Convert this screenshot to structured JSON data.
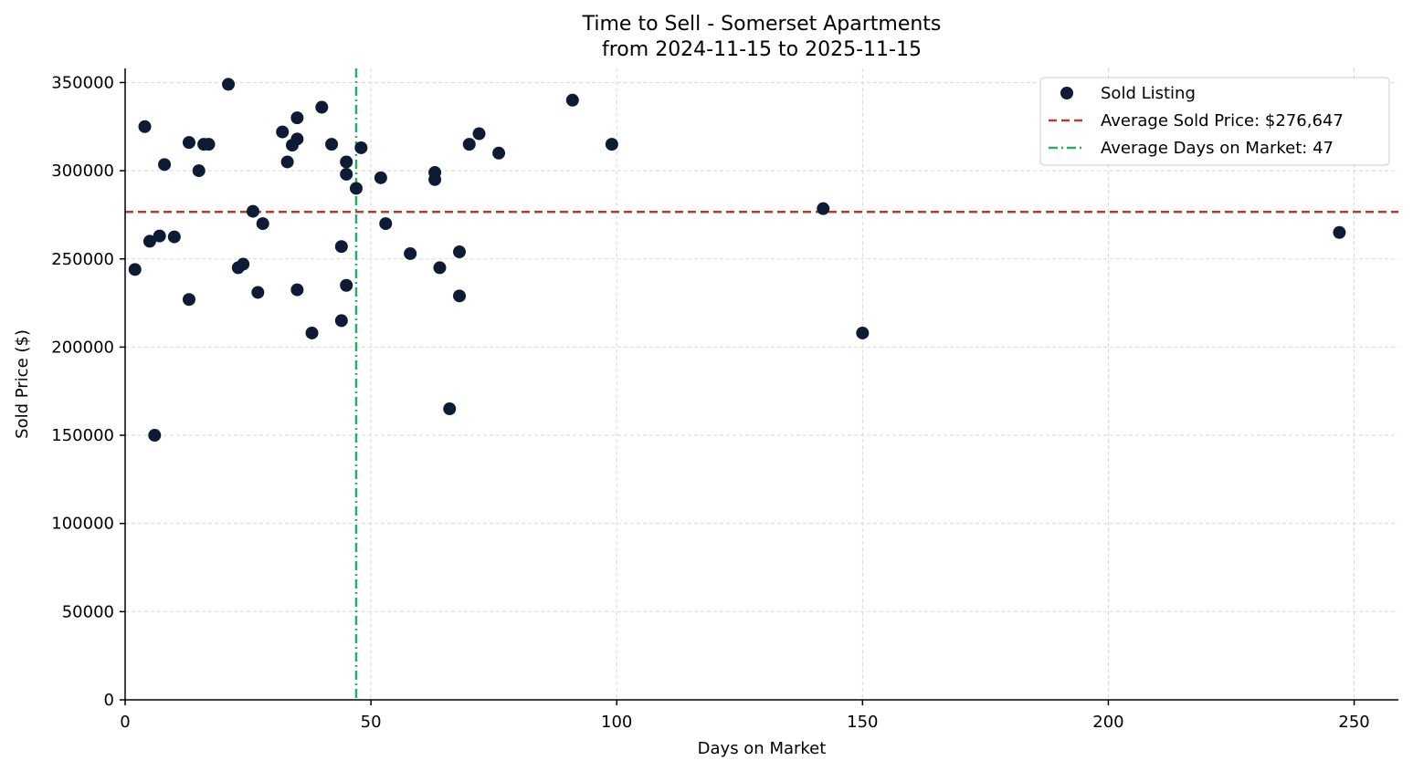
{
  "chart_data": {
    "type": "scatter",
    "title_line1": "Time to Sell - Somerset Apartments",
    "title_line2": "from 2024-11-15 to 2025-11-15",
    "xlabel": "Days on Market",
    "ylabel": "Sold Price ($)",
    "xlim": [
      0,
      259
    ],
    "ylim": [
      0,
      358000
    ],
    "xticks": [
      0,
      50,
      100,
      150,
      200,
      250
    ],
    "yticks": [
      0,
      50000,
      100000,
      150000,
      200000,
      250000,
      300000,
      350000
    ],
    "grid": true,
    "legend_position": "top-right",
    "colors": {
      "points": "#0d1b35",
      "avg_price_line": "#c0392b",
      "avg_days_line": "#27ae60"
    },
    "series": [
      {
        "name": "Sold Listing",
        "points": [
          [
            2,
            244000
          ],
          [
            4,
            325000
          ],
          [
            5,
            260000
          ],
          [
            6,
            150000
          ],
          [
            7,
            263000
          ],
          [
            8,
            303500
          ],
          [
            10,
            262500
          ],
          [
            13,
            316000
          ],
          [
            13,
            227000
          ],
          [
            15,
            300000
          ],
          [
            16,
            315000
          ],
          [
            17,
            315000
          ],
          [
            21,
            349000
          ],
          [
            23,
            245000
          ],
          [
            24,
            247000
          ],
          [
            26,
            277000
          ],
          [
            27,
            231000
          ],
          [
            28,
            270000
          ],
          [
            32,
            322000
          ],
          [
            33,
            305000
          ],
          [
            34,
            314500
          ],
          [
            35,
            330000
          ],
          [
            35,
            318000
          ],
          [
            35,
            232500
          ],
          [
            38,
            208000
          ],
          [
            40,
            336000
          ],
          [
            42,
            315000
          ],
          [
            44,
            257000
          ],
          [
            44,
            215000
          ],
          [
            45,
            305000
          ],
          [
            45,
            298000
          ],
          [
            45,
            235000
          ],
          [
            47,
            290000
          ],
          [
            48,
            313000
          ],
          [
            52,
            296000
          ],
          [
            53,
            270000
          ],
          [
            58,
            253000
          ],
          [
            63,
            299000
          ],
          [
            63,
            295000
          ],
          [
            64,
            245000
          ],
          [
            66,
            165000
          ],
          [
            68,
            254000
          ],
          [
            68,
            229000
          ],
          [
            70,
            315000
          ],
          [
            72,
            321000
          ],
          [
            76,
            310000
          ],
          [
            91,
            340000
          ],
          [
            99,
            315000
          ],
          [
            142,
            278500
          ],
          [
            150,
            208000
          ],
          [
            247,
            265000
          ]
        ]
      }
    ],
    "avg_price": 276647,
    "avg_days": 47,
    "legend": {
      "scatter": "Sold Listing",
      "avg_price": "Average Sold Price: $276,647",
      "avg_days": "Average Days on Market: 47"
    }
  }
}
